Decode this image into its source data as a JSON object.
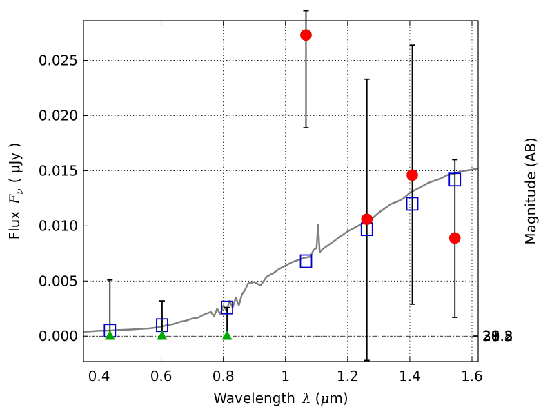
{
  "chart_data": {
    "type": "scatter",
    "title": "",
    "xlabel_text": "Wavelength",
    "xlabel_symbol": "λ",
    "xlabel_unit_open": "(",
    "xlabel_unit_mu": "μ",
    "xlabel_unit_rest": "m)",
    "ylabel_text": "Flux",
    "ylabel_symbol": "F",
    "ylabel_sub": "ν",
    "ylabel_unit": "( μJy )",
    "y2label": "Magnitude (AB)",
    "xlim": [
      0.35,
      1.62
    ],
    "ylim": [
      -0.0023,
      0.0286
    ],
    "x_ticks": [
      0.4,
      0.6,
      0.8,
      1.0,
      1.2,
      1.4,
      1.6
    ],
    "x_tick_labels": [
      "0.4",
      "0.6",
      "0.8",
      "1",
      "1.2",
      "1.4",
      "1.6"
    ],
    "y_ticks": [
      0.0,
      0.005,
      0.01,
      0.015,
      0.02,
      0.025
    ],
    "y_tick_labels": [
      "0.000",
      "0.005",
      "0.010",
      "0.015",
      "0.020",
      "0.025"
    ],
    "mag_ticks": [
      27.8,
      28,
      28.2,
      28.5,
      29,
      29.5,
      30,
      31
    ],
    "mag_tick_labels": [
      "27.8",
      "28",
      "28.2",
      "28.5",
      "29",
      "29.5",
      "30",
      "31"
    ],
    "grid": true,
    "series": [
      {
        "kind": "line",
        "color": "#808080",
        "x": [
          0.35,
          0.38,
          0.4,
          0.43,
          0.46,
          0.5,
          0.53,
          0.56,
          0.59,
          0.62,
          0.64,
          0.66,
          0.68,
          0.7,
          0.72,
          0.74,
          0.76,
          0.77,
          0.78,
          0.79,
          0.8,
          0.81,
          0.82,
          0.83,
          0.84,
          0.85,
          0.86,
          0.87,
          0.88,
          0.9,
          0.92,
          0.94,
          0.96,
          0.98,
          1.0,
          1.02,
          1.04,
          1.06,
          1.08,
          1.09,
          1.1,
          1.105,
          1.11,
          1.12,
          1.14,
          1.16,
          1.18,
          1.2,
          1.22,
          1.24,
          1.26,
          1.28,
          1.3,
          1.32,
          1.34,
          1.36,
          1.38,
          1.4,
          1.42,
          1.44,
          1.46,
          1.48,
          1.5,
          1.52,
          1.54,
          1.56,
          1.58,
          1.6,
          1.62
        ],
        "y": [
          0.0004,
          0.00045,
          0.0005,
          0.0005,
          0.00055,
          0.0006,
          0.00065,
          0.0007,
          0.0008,
          0.001,
          0.0011,
          0.0013,
          0.0014,
          0.0016,
          0.0017,
          0.002,
          0.0022,
          0.0018,
          0.0025,
          0.002,
          0.0028,
          0.0023,
          0.0032,
          0.0026,
          0.0035,
          0.0028,
          0.0038,
          0.0042,
          0.0048,
          0.0049,
          0.0046,
          0.0054,
          0.0057,
          0.0061,
          0.0064,
          0.0067,
          0.0069,
          0.0071,
          0.0072,
          0.0078,
          0.008,
          0.0101,
          0.0076,
          0.0079,
          0.0083,
          0.0087,
          0.0091,
          0.0095,
          0.0098,
          0.0101,
          0.0104,
          0.0107,
          0.0112,
          0.0116,
          0.012,
          0.0122,
          0.0125,
          0.013,
          0.0133,
          0.0136,
          0.0139,
          0.0141,
          0.0143,
          0.0146,
          0.0147,
          0.0149,
          0.015,
          0.0151,
          0.0152
        ]
      },
      {
        "kind": "square",
        "color": "#0000cc",
        "x": [
          0.435,
          0.603,
          0.812,
          1.066,
          1.262,
          1.408,
          1.545
        ],
        "y": [
          0.0005,
          0.001,
          0.0026,
          0.0068,
          0.0097,
          0.012,
          0.0142
        ]
      },
      {
        "kind": "circle",
        "color": "#ff0000",
        "x": [
          1.066,
          1.262,
          1.408,
          1.545
        ],
        "y": [
          0.0273,
          0.0106,
          0.0146,
          0.0089
        ],
        "err_low": [
          0.0189,
          -0.0022,
          0.0029,
          0.0017
        ],
        "err_high": [
          0.0295,
          0.0233,
          0.0264,
          0.016
        ]
      },
      {
        "kind": "triangle",
        "color": "#00aa00",
        "x": [
          0.435,
          0.603,
          0.812
        ],
        "y": [
          0.0,
          0.0,
          0.0
        ],
        "err_low": [
          0.0,
          0.0,
          0.0
        ],
        "err_high": [
          0.0051,
          0.0032,
          0.0026
        ]
      }
    ]
  }
}
